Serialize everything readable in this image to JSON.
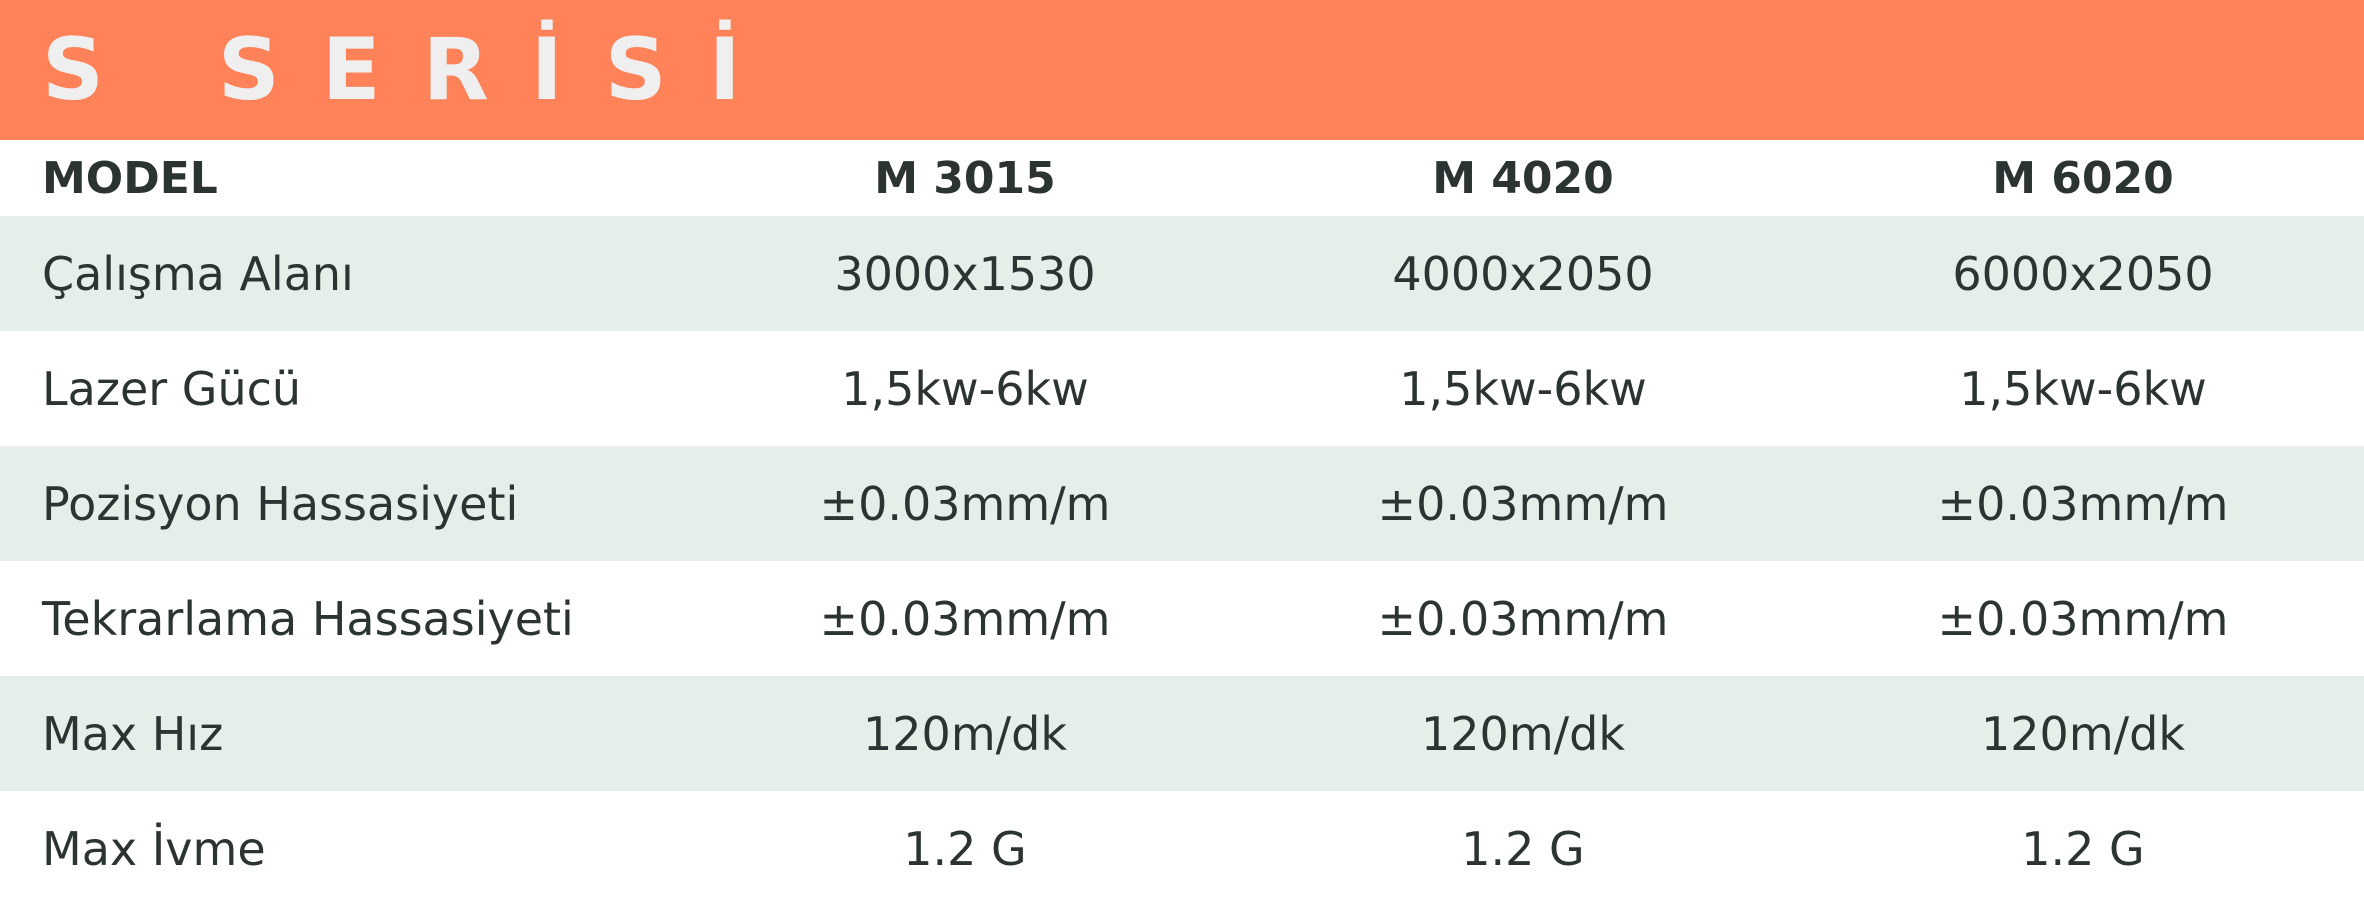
{
  "header": {
    "title": "S SERİSİ"
  },
  "table": {
    "columns": [
      "MODEL",
      "M 3015",
      "M 4020",
      "M 6020"
    ],
    "rows": [
      [
        "Çalışma Alanı",
        "3000x1530",
        "4000x2050",
        "6000x2050"
      ],
      [
        "Lazer Gücü",
        "1,5kw-6kw",
        "1,5kw-6kw",
        "1,5kw-6kw"
      ],
      [
        "Pozisyon Hassasiyeti",
        "±0.03mm/m",
        "±0.03mm/m",
        "±0.03mm/m"
      ],
      [
        "Tekrarlama Hassasiyeti",
        "±0.03mm/m",
        "±0.03mm/m",
        "±0.03mm/m"
      ],
      [
        "Max Hız",
        "120m/dk",
        "120m/dk",
        "120m/dk"
      ],
      [
        "Max İvme",
        "1.2 G",
        "1.2 G",
        "1.2 G"
      ]
    ]
  }
}
